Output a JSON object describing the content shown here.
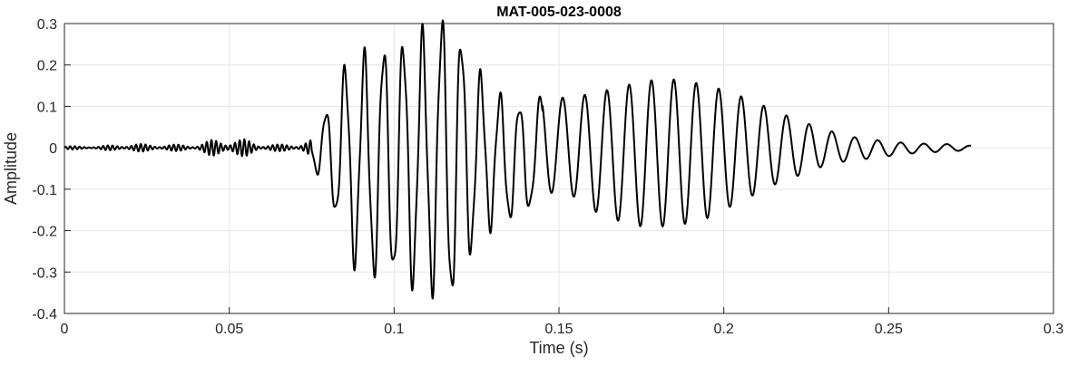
{
  "chart_data": {
    "type": "line",
    "title": "MAT-005-023-0008",
    "xlabel": "Time (s)",
    "ylabel": "Amplitude",
    "xlim": [
      0,
      0.3
    ],
    "ylim": [
      -0.4,
      0.3
    ],
    "grid": true,
    "legend": "none",
    "x_ticks": [
      0,
      0.05,
      0.1,
      0.15,
      0.2,
      0.25,
      0.3
    ],
    "x_tick_labels": [
      "0",
      "0.05",
      "0.1",
      "0.15",
      "0.2",
      "0.25",
      "0.3"
    ],
    "y_ticks": [
      -0.4,
      -0.3,
      -0.2,
      -0.1,
      0,
      0.1,
      0.2,
      0.3
    ],
    "y_tick_labels": [
      "-0.4",
      "-0.3",
      "-0.2",
      "-0.1",
      "0",
      "0.1",
      "0.2",
      "0.3"
    ],
    "line_color": "#000000",
    "grid_color": "#e6e6e6",
    "series": [
      {
        "x": [
          0,
          0.01,
          0.02,
          0.03,
          0.04,
          0.045,
          0.05,
          0.055,
          0.06,
          0.065,
          0.07,
          0.075,
          0.078,
          0.082,
          0.085,
          0.09,
          0.095,
          0.1,
          0.105,
          0.11,
          0.115,
          0.118,
          0.12,
          0.125,
          0.13,
          0.135,
          0.14,
          0.145,
          0.15,
          0.155,
          0.16,
          0.165,
          0.17,
          0.175,
          0.18,
          0.185,
          0.19,
          0.195,
          0.2,
          0.205,
          0.21,
          0.215,
          0.22,
          0.225,
          0.23,
          0.235,
          0.24,
          0.245,
          0.25,
          0.255,
          0.26,
          0.265,
          0.27,
          0.275
        ],
        "envelope_upper": [
          0.004,
          0.004,
          0.01,
          0.008,
          0.008,
          0.02,
          0.025,
          0.02,
          0.01,
          0.008,
          0.01,
          0.02,
          0.06,
          0.14,
          0.19,
          0.21,
          0.23,
          0.24,
          0.25,
          0.27,
          0.3,
          0.3,
          0.26,
          0.18,
          0.14,
          0.1,
          0.1,
          0.12,
          0.12,
          0.125,
          0.13,
          0.14,
          0.15,
          0.16,
          0.165,
          0.165,
          0.16,
          0.15,
          0.14,
          0.125,
          0.11,
          0.09,
          0.075,
          0.06,
          0.045,
          0.035,
          0.025,
          0.02,
          0.015,
          0.012,
          0.01,
          0.01,
          0.008,
          0.005
        ],
        "envelope_lower": [
          -0.004,
          -0.004,
          -0.01,
          -0.008,
          -0.008,
          -0.02,
          -0.025,
          -0.02,
          -0.01,
          -0.008,
          -0.01,
          -0.02,
          -0.1,
          -0.15,
          -0.24,
          -0.29,
          -0.3,
          -0.3,
          -0.32,
          -0.33,
          -0.34,
          -0.36,
          -0.3,
          -0.22,
          -0.18,
          -0.17,
          -0.15,
          -0.12,
          -0.1,
          -0.12,
          -0.15,
          -0.17,
          -0.18,
          -0.19,
          -0.19,
          -0.19,
          -0.18,
          -0.17,
          -0.15,
          -0.13,
          -0.11,
          -0.09,
          -0.075,
          -0.06,
          -0.045,
          -0.035,
          -0.03,
          -0.025,
          -0.02,
          -0.015,
          -0.012,
          -0.01,
          -0.008,
          -0.005
        ]
      }
    ]
  }
}
